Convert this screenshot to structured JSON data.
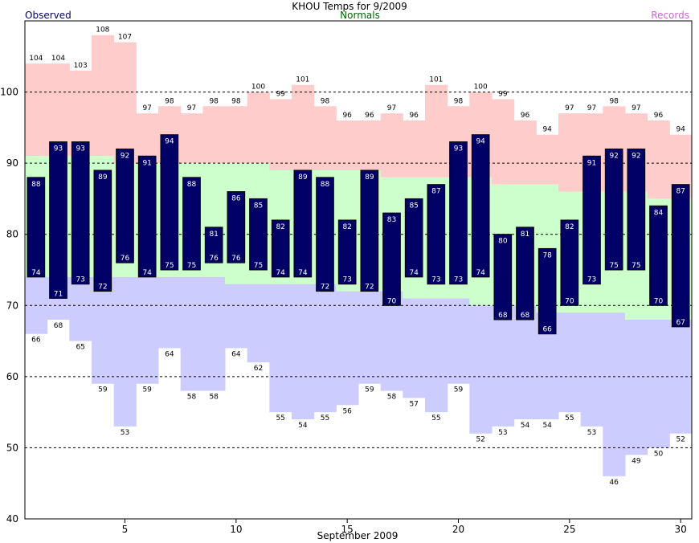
{
  "chart_data": {
    "type": "bar",
    "title": "KHOU Temps for 9/2009",
    "legend": {
      "observed": "Observed",
      "normals": "Normals",
      "records": "Records"
    },
    "xlabel": "September 2009",
    "ylabel": "",
    "ylim": [
      40,
      110
    ],
    "yticks": [
      40,
      50,
      60,
      70,
      80,
      90,
      100
    ],
    "xticks": [
      5,
      10,
      15,
      20,
      25,
      30
    ],
    "grid": "dashed horizontal",
    "colors": {
      "observed": "#000066",
      "observed_text": "#ffffff",
      "normals": "#ccffcc",
      "record_high": "#ffcccc",
      "record_low": "#ccccff",
      "title": "#000000",
      "legend_observed": "#000066",
      "legend_normals": "#006600",
      "legend_records": "#cc66cc"
    },
    "days": [
      1,
      2,
      3,
      4,
      5,
      6,
      7,
      8,
      9,
      10,
      11,
      12,
      13,
      14,
      15,
      16,
      17,
      18,
      19,
      20,
      21,
      22,
      23,
      24,
      25,
      26,
      27,
      28,
      29,
      30
    ],
    "observed_high": [
      88,
      93,
      93,
      89,
      92,
      91,
      94,
      88,
      81,
      86,
      85,
      82,
      89,
      88,
      82,
      89,
      83,
      85,
      87,
      93,
      94,
      80,
      81,
      78,
      82,
      91,
      92,
      92,
      84,
      87
    ],
    "observed_low": [
      74,
      71,
      73,
      72,
      76,
      74,
      75,
      75,
      76,
      76,
      75,
      74,
      74,
      72,
      73,
      72,
      70,
      74,
      73,
      73,
      74,
      68,
      68,
      66,
      70,
      73,
      75,
      75,
      70,
      67
    ],
    "normal_high": [
      91,
      91,
      91,
      91,
      90,
      90,
      90,
      90,
      90,
      90,
      90,
      89,
      89,
      89,
      89,
      89,
      88,
      88,
      88,
      88,
      88,
      87,
      87,
      87,
      86,
      86,
      86,
      86,
      85,
      85
    ],
    "normal_low": [
      74,
      74,
      74,
      74,
      74,
      74,
      74,
      74,
      74,
      73,
      73,
      73,
      73,
      73,
      72,
      72,
      72,
      71,
      71,
      71,
      70,
      70,
      70,
      69,
      69,
      69,
      69,
      68,
      68,
      68
    ],
    "record_high": [
      104,
      104,
      103,
      108,
      107,
      97,
      98,
      97,
      98,
      98,
      100,
      99,
      101,
      98,
      96,
      96,
      97,
      96,
      101,
      98,
      100,
      99,
      96,
      94,
      97,
      97,
      98,
      97,
      96,
      94
    ],
    "record_low": [
      66,
      68,
      65,
      59,
      53,
      59,
      64,
      58,
      58,
      64,
      62,
      55,
      54,
      55,
      56,
      59,
      58,
      57,
      55,
      59,
      52,
      53,
      54,
      54,
      55,
      53,
      46,
      49,
      50,
      52
    ]
  }
}
